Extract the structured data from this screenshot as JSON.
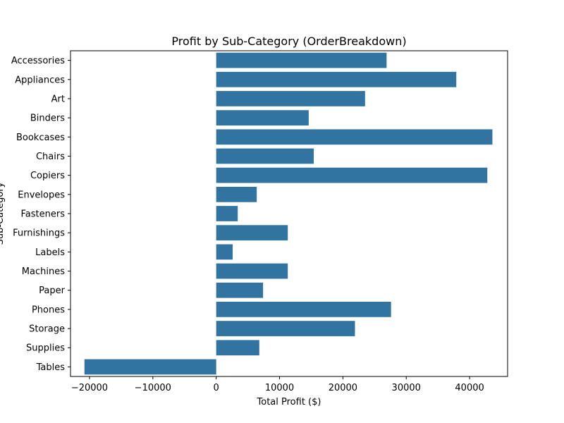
{
  "chart_data": {
    "type": "bar",
    "orientation": "horizontal",
    "title": "Profit by Sub-Category (OrderBreakdown)",
    "xlabel": "Total Profit ($)",
    "ylabel": "Sub-Category",
    "xlim": [
      -23000,
      46000
    ],
    "xticks": [
      -20000,
      -10000,
      0,
      10000,
      20000,
      30000,
      40000
    ],
    "xtick_labels": [
      "−20000",
      "−10000",
      "0",
      "10000",
      "20000",
      "30000",
      "40000"
    ],
    "grid": false,
    "bar_color": "#3274a1",
    "categories": [
      "Accessories",
      "Appliances",
      "Art",
      "Binders",
      "Bookcases",
      "Chairs",
      "Copiers",
      "Envelopes",
      "Fasteners",
      "Furnishings",
      "Labels",
      "Machines",
      "Paper",
      "Phones",
      "Storage",
      "Supplies",
      "Tables"
    ],
    "values": [
      26900,
      37900,
      23500,
      14600,
      43600,
      15400,
      42800,
      6400,
      3400,
      11300,
      2600,
      11300,
      7400,
      27600,
      21900,
      6800,
      -20800
    ]
  }
}
